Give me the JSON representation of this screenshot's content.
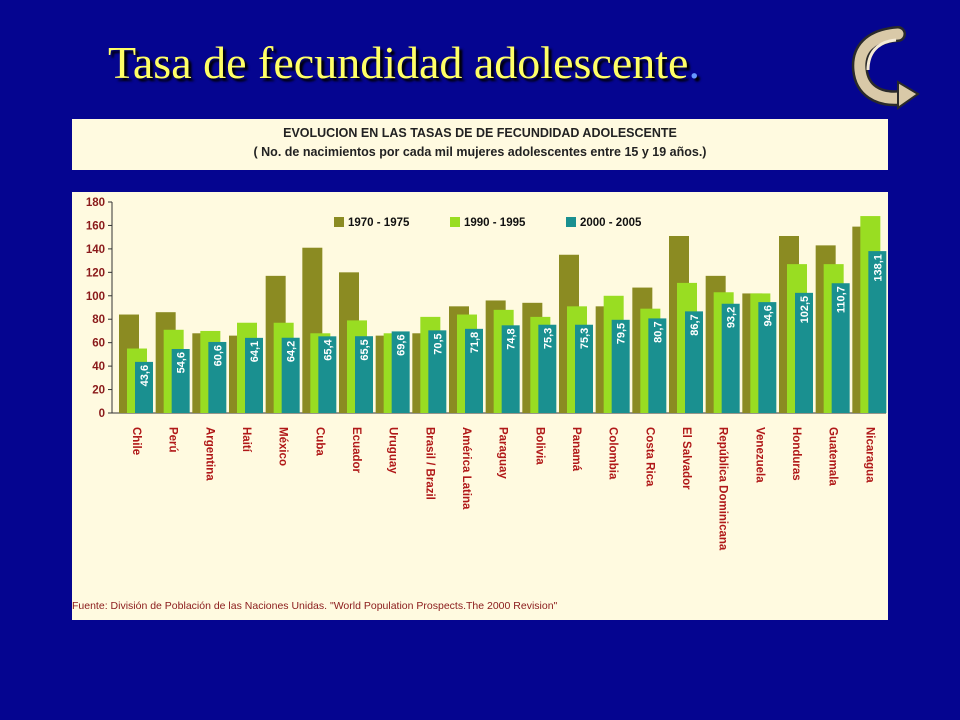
{
  "title": {
    "text": "Tasa de fecundidad adolescente",
    "dot": "."
  },
  "header": {
    "line1": "EVOLUCION EN LAS TASAS DE DE FECUNDIDAD ADOLESCENTE",
    "line2": "( No. de nacimientos por cada mil mujeres adolescentes entre 15 y 19 años.)"
  },
  "source": "Fuente: División de Población de las Naciones Unidas. \"World Population Prospects.The 2000 Revision\"",
  "icons": {
    "nav": "curved-return-arrow-icon"
  },
  "colors": {
    "background": "#050590",
    "title": "#ffff66",
    "panel": "#fffae0",
    "s1": "#8b8b22",
    "s2": "#99dd22",
    "s3": "#1a9090",
    "ticks": "#8a1a1a",
    "categories": "#b01818"
  },
  "chart_data": {
    "type": "bar",
    "ylim": [
      0,
      180
    ],
    "yticks": [
      0,
      20,
      40,
      60,
      80,
      100,
      120,
      140,
      160,
      180
    ],
    "legend_position": "top",
    "categories": [
      "Chile",
      "Perú",
      "Argentina",
      "Haití",
      "México",
      "Cuba",
      "Ecuador",
      "Uruguay",
      "Brasil / Brazil",
      "América Latina",
      "Paraguay",
      "Bolivia",
      "Panamá",
      "Colombia",
      "Costa Rica",
      "El Salvador",
      "República Dominicana",
      "Venezuela",
      "Honduras",
      "Guatemala",
      "Nicaragua"
    ],
    "series": [
      {
        "name": "1970 - 1975",
        "values": [
          84,
          86,
          68,
          66,
          117,
          141,
          120,
          66,
          68,
          91,
          96,
          94,
          135,
          91,
          107,
          151,
          117,
          102,
          151,
          143,
          159
        ]
      },
      {
        "name": "1990 - 1995",
        "values": [
          55,
          71,
          70,
          77,
          77,
          68,
          79,
          68,
          82,
          84,
          88,
          82,
          91,
          100,
          89,
          111,
          103,
          102,
          127,
          127,
          168
        ]
      },
      {
        "name": "2000 - 2005",
        "values": [
          43.6,
          54.6,
          60.6,
          64.1,
          64.2,
          65.4,
          65.5,
          69.6,
          70.5,
          71.8,
          74.8,
          75.3,
          75.3,
          79.5,
          80.7,
          86.7,
          93.2,
          94.6,
          102.5,
          110.7,
          138.1
        ],
        "labels": [
          "43,6",
          "54,6",
          "60,6",
          "64,1",
          "64,2",
          "65,4",
          "65,5",
          "69,6",
          "70,5",
          "71,8",
          "74,8",
          "75,3",
          "75,3",
          "79,5",
          "80,7",
          "86,7",
          "93,2",
          "94,6",
          "102,5",
          "110,7",
          "138,1"
        ]
      }
    ]
  }
}
